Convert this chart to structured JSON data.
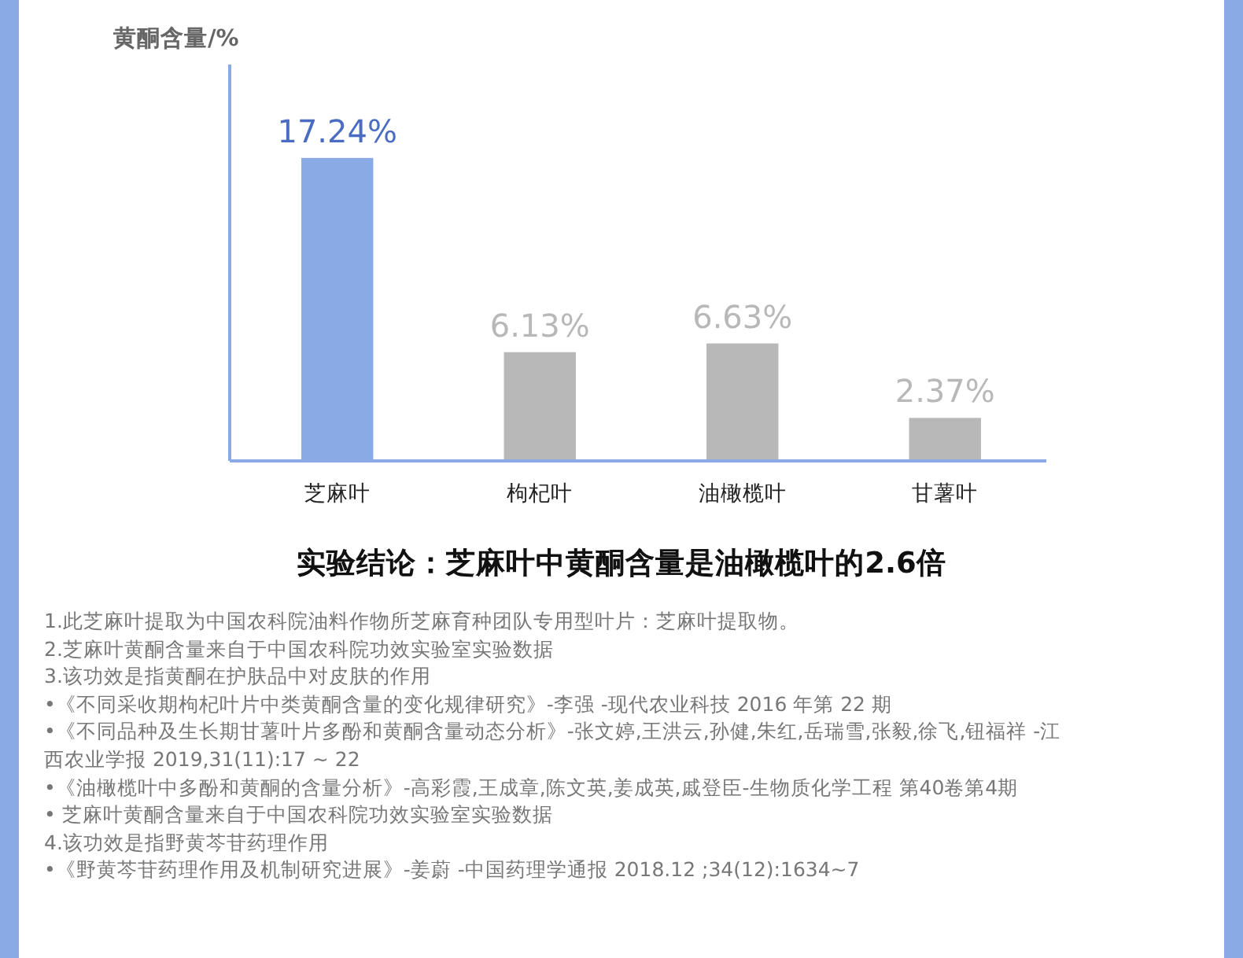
{
  "chart_data": {
    "type": "bar",
    "title": "实验结论：芝麻叶中黄酮含量是油橄榄叶的2.6倍",
    "ylabel": "黄酮含量/%",
    "categories": [
      "芝麻叶",
      "枸杞叶",
      "油橄榄叶",
      "甘薯叶"
    ],
    "values": [
      17.24,
      6.13,
      6.63,
      2.37
    ],
    "colors": [
      "#8aaae5",
      "#b8b8b8",
      "#b8b8b8",
      "#b8b8b8"
    ],
    "value_labels": [
      "17.24%",
      "6.13%",
      "6.63%",
      "2.37%"
    ],
    "annotations": [
      "1.此芝麻叶提取为中国农科院油料作物所芝麻育种团队专用型叶片：芝麻叶提取物。",
      "2.芝麻叶黄酮含量来自于中国农科院功效实验室实验数据",
      "3.该功效是指黄酮在护肤品中对皮肤的作用",
      "•《不同采收期枸杞叶片中类黄酮含量的变化规律研究》-李强 -现代农业科技 2016 年第 22 期",
      "•《不同品种及生长期甘薯叶片多酚和黄酮含量动态分析》-张文婷,王洪云,孙健,朱红,岳瑞雪,张毅,徐飞,钮福祥 -江西农业学报 2019,31(11):17 ~ 22",
      "•《油橄榄叶中多酚和黄酮的含量分析》-高彩霞,王成章,陈文英,姜成英,戚登臣-生物质化学工程 第40卷第4期",
      "• 芝麻叶黄酮含量来自于中国农科院功效实验室实验数据",
      "4.该功效是指野黄芩苷药理作用",
      "•《野黄芩苷药理作用及机制研究进展》-姜蔚 -中国药理学通报 2018.12 ;34(12):1634~7"
    ]
  }
}
